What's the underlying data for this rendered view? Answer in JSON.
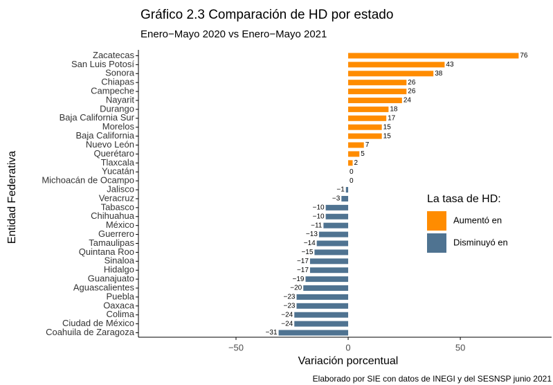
{
  "chart_data": {
    "type": "bar",
    "orientation": "horizontal",
    "title": "Gráfico 2.3 Comparación de HD por estado",
    "subtitle": "Enero−Mayo 2020 vs Enero−Mayo 2021",
    "x_label": "Variación porcentual",
    "y_label": "Entidad Federativa",
    "caption": "Elaborado por SIE con datos de INEGI y del SESNSP junio 2021",
    "legend_title": "La tasa de HD:",
    "categories": [
      "Zacatecas",
      "San Luis Potosí",
      "Sonora",
      "Chiapas",
      "Campeche",
      "Nayarit",
      "Durango",
      "Baja California Sur",
      "Morelos",
      "Baja California",
      "Nuevo León",
      "Querétaro",
      "Tlaxcala",
      "Yucatán",
      "Michoacán de Ocampo",
      "Jalisco",
      "Veracruz",
      "Tabasco",
      "Chihuahua",
      "México",
      "Guerrero",
      "Tamaulipas",
      "Quintana Roo",
      "Sinaloa",
      "Hidalgo",
      "Guanajuato",
      "Aguascalientes",
      "Puebla",
      "Oaxaca",
      "Colima",
      "Ciudad de México",
      "Coahuila de Zaragoza"
    ],
    "series": [
      {
        "name": "Aumentó en",
        "color": "#FF8C00",
        "values": [
          76,
          43,
          38,
          26,
          26,
          24,
          18,
          17,
          15,
          15,
          7,
          5,
          2,
          0,
          0,
          null,
          null,
          null,
          null,
          null,
          null,
          null,
          null,
          null,
          null,
          null,
          null,
          null,
          null,
          null,
          null,
          null
        ]
      },
      {
        "name": "Disminuyó en",
        "color": "#4F7391",
        "values": [
          null,
          null,
          null,
          null,
          null,
          null,
          null,
          null,
          null,
          null,
          null,
          null,
          null,
          null,
          null,
          -1,
          -3,
          -10,
          -10,
          -11,
          -13,
          -14,
          -15,
          -17,
          -17,
          -19,
          -20,
          -23,
          -23,
          -24,
          -24,
          -31
        ],
        "value_labels": [
          null,
          null,
          null,
          null,
          null,
          null,
          null,
          null,
          null,
          null,
          null,
          null,
          null,
          null,
          null,
          "−1",
          "−3",
          "−10",
          "−10",
          "−11",
          "−13",
          "−14",
          "−15",
          "−17",
          "−17",
          "−19",
          "−20",
          "−23",
          "−23",
          "−24",
          "−24",
          "−31"
        ]
      }
    ],
    "xlim": [
      -93.5,
      90.7
    ],
    "xticks": [
      {
        "value": -50,
        "label": "−50"
      },
      0,
      50
    ],
    "grid": false
  }
}
